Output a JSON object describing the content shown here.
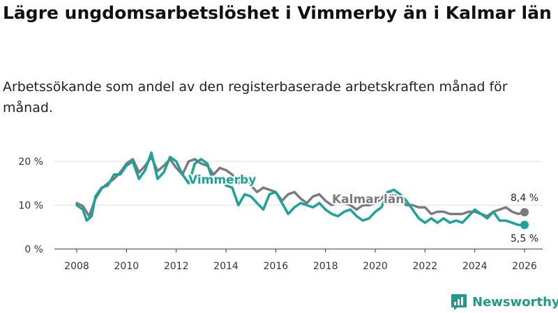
{
  "title": "Lägre ungdomsarbetslöshet i Vimmerby än i Kalmar län",
  "subtitle": "Arbetssökande som andel av den registerbaserade arbetskraften månad för månad.",
  "brand": "Newsworthy",
  "colors": {
    "vimmerby": "#1aa399",
    "kalmar": "#7b7a80",
    "grid": "#dddddd",
    "axis": "#333333",
    "brand": "#20998a"
  },
  "chart_data": {
    "type": "line",
    "x_unit": "year",
    "xlim": [
      2007.6,
      2026.3
    ],
    "ylim": [
      0,
      22.5
    ],
    "x_ticks": [
      2008,
      2010,
      2012,
      2014,
      2016,
      2018,
      2020,
      2022,
      2024,
      2026
    ],
    "x_tick_labels": [
      "2008",
      "2010",
      "2012",
      "2014",
      "2016",
      "2018",
      "2020",
      "2022",
      "2024",
      "2026"
    ],
    "y_ticks": [
      0,
      10,
      20
    ],
    "y_tick_labels": [
      "0 %",
      "10 %",
      "20 %"
    ],
    "series": [
      {
        "name": "Kalmar län",
        "label": "Kalmar län",
        "end_label": "8,4 %",
        "points": [
          [
            2008.0,
            10.5
          ],
          [
            2008.25,
            9.8
          ],
          [
            2008.5,
            7.5
          ],
          [
            2008.75,
            11.5
          ],
          [
            2009.0,
            13.8
          ],
          [
            2009.25,
            15.0
          ],
          [
            2009.5,
            16.0
          ],
          [
            2009.75,
            17.5
          ],
          [
            2010.0,
            19.5
          ],
          [
            2010.25,
            20.5
          ],
          [
            2010.5,
            17.5
          ],
          [
            2010.75,
            19.0
          ],
          [
            2011.0,
            21.0
          ],
          [
            2011.25,
            17.8
          ],
          [
            2011.5,
            19.0
          ],
          [
            2011.75,
            20.5
          ],
          [
            2012.0,
            18.5
          ],
          [
            2012.25,
            17.0
          ],
          [
            2012.5,
            20.0
          ],
          [
            2012.75,
            20.5
          ],
          [
            2013.0,
            19.5
          ],
          [
            2013.25,
            19.0
          ],
          [
            2013.5,
            17.0
          ],
          [
            2013.75,
            18.5
          ],
          [
            2014.0,
            18.0
          ],
          [
            2014.25,
            17.0
          ],
          [
            2014.5,
            15.0
          ],
          [
            2014.75,
            16.5
          ],
          [
            2015.0,
            14.5
          ],
          [
            2015.25,
            13.0
          ],
          [
            2015.5,
            14.0
          ],
          [
            2015.75,
            13.5
          ],
          [
            2016.0,
            13.0
          ],
          [
            2016.25,
            11.0
          ],
          [
            2016.5,
            12.5
          ],
          [
            2016.75,
            13.0
          ],
          [
            2017.0,
            11.5
          ],
          [
            2017.25,
            10.5
          ],
          [
            2017.5,
            12.0
          ],
          [
            2017.75,
            12.5
          ],
          [
            2018.0,
            11.0
          ],
          [
            2018.25,
            10.0
          ],
          [
            2018.5,
            10.8
          ],
          [
            2018.75,
            10.5
          ],
          [
            2019.0,
            10.0
          ],
          [
            2019.25,
            9.0
          ],
          [
            2019.5,
            10.0
          ],
          [
            2019.75,
            10.0
          ],
          [
            2020.0,
            10.5
          ],
          [
            2020.25,
            11.5
          ],
          [
            2020.5,
            13.0
          ],
          [
            2020.75,
            12.5
          ],
          [
            2021.0,
            11.5
          ],
          [
            2021.25,
            10.0
          ],
          [
            2021.5,
            10.0
          ],
          [
            2021.75,
            9.5
          ],
          [
            2022.0,
            9.5
          ],
          [
            2022.25,
            8.0
          ],
          [
            2022.5,
            8.5
          ],
          [
            2022.75,
            8.5
          ],
          [
            2023.0,
            8.0
          ],
          [
            2023.25,
            8.0
          ],
          [
            2023.5,
            8.0
          ],
          [
            2023.75,
            8.5
          ],
          [
            2024.0,
            8.5
          ],
          [
            2024.25,
            8.0
          ],
          [
            2024.5,
            7.5
          ],
          [
            2024.75,
            8.5
          ],
          [
            2025.0,
            9.0
          ],
          [
            2025.25,
            9.5
          ],
          [
            2025.5,
            8.5
          ],
          [
            2025.75,
            8.0
          ],
          [
            2026.0,
            8.4
          ]
        ]
      },
      {
        "name": "Vimmerby",
        "label": "Vimmerby",
        "end_label": "5,5 %",
        "points": [
          [
            2008.0,
            10.0
          ],
          [
            2008.25,
            9.0
          ],
          [
            2008.4,
            6.5
          ],
          [
            2008.6,
            7.5
          ],
          [
            2008.75,
            12.0
          ],
          [
            2009.0,
            14.0
          ],
          [
            2009.25,
            14.5
          ],
          [
            2009.5,
            17.0
          ],
          [
            2009.75,
            17.0
          ],
          [
            2010.0,
            19.0
          ],
          [
            2010.25,
            20.0
          ],
          [
            2010.5,
            16.0
          ],
          [
            2010.75,
            18.0
          ],
          [
            2011.0,
            22.0
          ],
          [
            2011.25,
            16.0
          ],
          [
            2011.5,
            17.5
          ],
          [
            2011.75,
            21.0
          ],
          [
            2012.0,
            20.0
          ],
          [
            2012.25,
            17.0
          ],
          [
            2012.5,
            15.0
          ],
          [
            2012.75,
            19.5
          ],
          [
            2013.0,
            20.5
          ],
          [
            2013.25,
            19.5
          ],
          [
            2013.5,
            15.0
          ],
          [
            2013.75,
            16.0
          ],
          [
            2014.0,
            14.5
          ],
          [
            2014.25,
            14.0
          ],
          [
            2014.5,
            10.0
          ],
          [
            2014.75,
            12.5
          ],
          [
            2015.0,
            12.0
          ],
          [
            2015.25,
            10.5
          ],
          [
            2015.5,
            9.0
          ],
          [
            2015.75,
            12.5
          ],
          [
            2016.0,
            13.0
          ],
          [
            2016.25,
            10.5
          ],
          [
            2016.5,
            8.0
          ],
          [
            2016.75,
            9.5
          ],
          [
            2017.0,
            10.5
          ],
          [
            2017.25,
            10.0
          ],
          [
            2017.5,
            9.5
          ],
          [
            2017.75,
            10.5
          ],
          [
            2018.0,
            9.0
          ],
          [
            2018.25,
            8.0
          ],
          [
            2018.5,
            7.5
          ],
          [
            2018.75,
            8.5
          ],
          [
            2019.0,
            9.0
          ],
          [
            2019.25,
            7.5
          ],
          [
            2019.5,
            6.5
          ],
          [
            2019.75,
            7.0
          ],
          [
            2020.0,
            8.5
          ],
          [
            2020.25,
            9.5
          ],
          [
            2020.5,
            13.0
          ],
          [
            2020.75,
            13.5
          ],
          [
            2021.0,
            12.5
          ],
          [
            2021.25,
            11.0
          ],
          [
            2021.5,
            9.0
          ],
          [
            2021.75,
            7.0
          ],
          [
            2022.0,
            6.0
          ],
          [
            2022.25,
            7.0
          ],
          [
            2022.5,
            6.0
          ],
          [
            2022.75,
            7.0
          ],
          [
            2023.0,
            6.0
          ],
          [
            2023.25,
            6.5
          ],
          [
            2023.5,
            6.0
          ],
          [
            2023.75,
            7.5
          ],
          [
            2024.0,
            9.0
          ],
          [
            2024.25,
            8.0
          ],
          [
            2024.5,
            7.0
          ],
          [
            2024.75,
            8.5
          ],
          [
            2025.0,
            6.5
          ],
          [
            2025.25,
            6.5
          ],
          [
            2025.5,
            6.0
          ],
          [
            2025.75,
            5.5
          ],
          [
            2026.0,
            5.5
          ]
        ]
      }
    ]
  }
}
